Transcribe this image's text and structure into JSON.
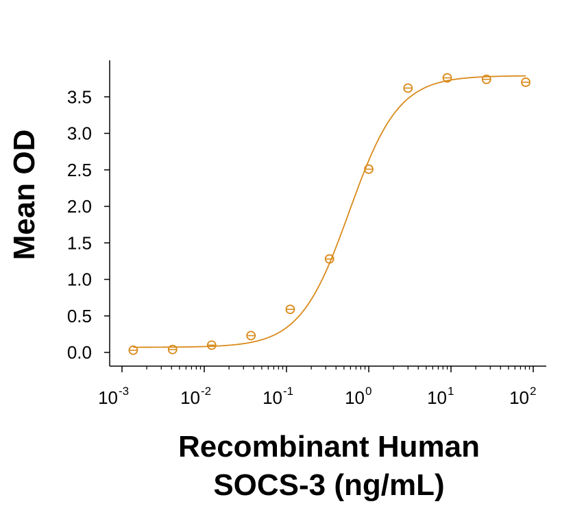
{
  "chart_data": {
    "type": "scatter",
    "xlabel_lines": [
      "Recombinant Human",
      "SOCS-3 (ng/mL)"
    ],
    "ylabel": "Mean OD",
    "x_scale": "log",
    "xlim": [
      0.001,
      100
    ],
    "ylim": [
      0.0,
      3.8
    ],
    "x_ticks": [
      {
        "value": 0.001,
        "base": "10",
        "exp": "-3"
      },
      {
        "value": 0.01,
        "base": "10",
        "exp": "-2"
      },
      {
        "value": 0.1,
        "base": "10",
        "exp": "-1"
      },
      {
        "value": 1,
        "base": "10",
        "exp": "0"
      },
      {
        "value": 10,
        "base": "10",
        "exp": "1"
      },
      {
        "value": 100,
        "base": "10",
        "exp": "2"
      }
    ],
    "y_ticks": [
      "0.0",
      "0.5",
      "1.0",
      "1.5",
      "2.0",
      "2.5",
      "3.0",
      "3.5"
    ],
    "grid": false,
    "legend": "none",
    "color": "#D98A1A",
    "points": [
      {
        "x": 0.00137,
        "y": 0.03
      },
      {
        "x": 0.00412,
        "y": 0.04
      },
      {
        "x": 0.0123,
        "y": 0.1
      },
      {
        "x": 0.037,
        "y": 0.23
      },
      {
        "x": 0.111,
        "y": 0.59
      },
      {
        "x": 0.333,
        "y": 1.28
      },
      {
        "x": 1.0,
        "y": 2.51
      },
      {
        "x": 3.0,
        "y": 3.62
      },
      {
        "x": 9.0,
        "y": 3.76
      },
      {
        "x": 27.0,
        "y": 3.74
      },
      {
        "x": 81.0,
        "y": 3.7
      }
    ],
    "fit": {
      "model": "4PL",
      "bottom": 0.07,
      "top": 3.79,
      "ec50": 0.58,
      "hill": 1.45
    }
  }
}
